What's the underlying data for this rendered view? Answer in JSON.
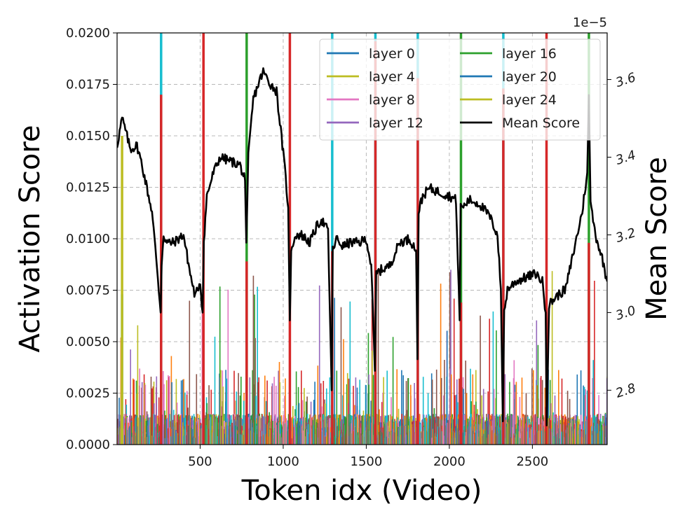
{
  "chart_data": {
    "type": "line",
    "xlabel": "Token idx (Video)",
    "ylabel_left": "Activation Score",
    "ylabel_right": "Mean Score",
    "right_axis_offset_text": "1e−5",
    "xlim": [
      0,
      2950
    ],
    "ylim_left": [
      0,
      0.02
    ],
    "ylim_right": [
      2.66,
      3.72
    ],
    "xticks": [
      500,
      1000,
      1500,
      2000,
      2500
    ],
    "xtick_labels": [
      "500",
      "1000",
      "1500",
      "2000",
      "2500"
    ],
    "yticks_left": [
      0,
      0.0025,
      0.005,
      0.0075,
      0.01,
      0.0125,
      0.015,
      0.0175,
      0.02
    ],
    "ytick_labels_left": [
      "0.0000",
      "0.0025",
      "0.0050",
      "0.0075",
      "0.0100",
      "0.0125",
      "0.0150",
      "0.0175",
      "0.0200"
    ],
    "yticks_right": [
      2.8,
      3.0,
      3.2,
      3.4,
      3.6
    ],
    "ytick_labels_right": [
      "2.8",
      "3.0",
      "3.2",
      "3.4",
      "3.6"
    ],
    "grid": true,
    "legend_position": "top-right",
    "legend": [
      {
        "name": "layer 0",
        "color": "#1f77b4"
      },
      {
        "name": "layer 4",
        "color": "#bcbd22"
      },
      {
        "name": "layer 8",
        "color": "#e377c2"
      },
      {
        "name": "layer 12",
        "color": "#9467bd"
      },
      {
        "name": "layer 16",
        "color": "#2ca02c"
      },
      {
        "name": "layer 20",
        "color": "#1f77b4"
      },
      {
        "name": "layer 24",
        "color": "#bcbd22"
      },
      {
        "name": "Mean Score",
        "color": "#000000"
      }
    ],
    "background_series_colors": [
      "#1f77b4",
      "#ff7f0e",
      "#2ca02c",
      "#d62728",
      "#9467bd",
      "#8c564b",
      "#e377c2",
      "#bcbd22",
      "#17becf"
    ],
    "frame_boundaries": [
      {
        "x": 30,
        "layers": [
          {
            "color": "#17becf",
            "value": 0.0073
          },
          {
            "color": "#bcbd22",
            "value": 0.015
          }
        ]
      },
      {
        "x": 265,
        "layers": [
          {
            "color": "#17becf",
            "value": 0.02
          },
          {
            "color": "#d62728",
            "value": 0.017
          }
        ]
      },
      {
        "x": 520,
        "layers": [
          {
            "color": "#d62728",
            "value": 0.02
          }
        ]
      },
      {
        "x": 780,
        "layers": [
          {
            "color": "#2ca02c",
            "value": 0.02
          },
          {
            "color": "#d62728",
            "value": 0.0089
          }
        ]
      },
      {
        "x": 1040,
        "layers": [
          {
            "color": "#d62728",
            "value": 0.02
          }
        ]
      },
      {
        "x": 1295,
        "layers": [
          {
            "color": "#17becf",
            "value": 0.02
          },
          {
            "color": "#d62728",
            "value": 0.0094
          }
        ]
      },
      {
        "x": 1555,
        "layers": [
          {
            "color": "#17becf",
            "value": 0.02
          },
          {
            "color": "#d62728",
            "value": 0.0196
          }
        ]
      },
      {
        "x": 1810,
        "layers": [
          {
            "color": "#17becf",
            "value": 0.02
          },
          {
            "color": "#d62728",
            "value": 0.0178
          }
        ]
      },
      {
        "x": 2070,
        "layers": [
          {
            "color": "#2ca02c",
            "value": 0.02
          },
          {
            "color": "#d62728",
            "value": 0.0069
          }
        ]
      },
      {
        "x": 2325,
        "layers": [
          {
            "color": "#17becf",
            "value": 0.02
          },
          {
            "color": "#d62728",
            "value": 0.0173
          }
        ]
      },
      {
        "x": 2585,
        "layers": [
          {
            "color": "#d62728",
            "value": 0.02
          }
        ]
      },
      {
        "x": 2840,
        "layers": [
          {
            "color": "#2ca02c",
            "value": 0.02
          },
          {
            "color": "#d62728",
            "value": 0.0098
          }
        ]
      }
    ],
    "mean_score_series": {
      "name": "Mean Score",
      "color": "#000000",
      "x": [
        0,
        30,
        50,
        80,
        120,
        150,
        180,
        210,
        240,
        262,
        268,
        280,
        300,
        340,
        400,
        440,
        470,
        500,
        515,
        522,
        540,
        580,
        620,
        680,
        740,
        770,
        778,
        790,
        820,
        860,
        880,
        920,
        960,
        1010,
        1030,
        1040,
        1048,
        1070,
        1110,
        1160,
        1200,
        1230,
        1270,
        1292,
        1298,
        1320,
        1360,
        1400,
        1460,
        1500,
        1530,
        1552,
        1560,
        1590,
        1640,
        1700,
        1760,
        1800,
        1808,
        1815,
        1840,
        1880,
        1940,
        2000,
        2040,
        2062,
        2068,
        2080,
        2120,
        2180,
        2240,
        2290,
        2310,
        2322,
        2330,
        2350,
        2400,
        2460,
        2520,
        2560,
        2580,
        2586,
        2600,
        2640,
        2700,
        2760,
        2800,
        2830,
        2840,
        2850,
        2880,
        2920,
        2950
      ],
      "y": [
        3.43,
        3.5,
        3.47,
        3.42,
        3.43,
        3.38,
        3.32,
        3.26,
        3.12,
        3.0,
        3.12,
        3.2,
        3.18,
        3.18,
        3.2,
        3.1,
        3.04,
        3.08,
        3.0,
        3.18,
        3.3,
        3.36,
        3.4,
        3.39,
        3.38,
        3.34,
        3.18,
        3.4,
        3.55,
        3.6,
        3.62,
        3.59,
        3.57,
        3.37,
        3.27,
        2.98,
        3.15,
        3.2,
        3.2,
        3.18,
        3.22,
        3.24,
        3.21,
        2.8,
        3.16,
        3.19,
        3.17,
        3.18,
        3.18,
        3.19,
        3.12,
        2.85,
        3.1,
        3.11,
        3.12,
        3.18,
        3.19,
        3.16,
        2.88,
        3.26,
        3.3,
        3.32,
        3.31,
        3.3,
        3.29,
        2.98,
        3.28,
        3.27,
        3.29,
        3.28,
        3.25,
        3.2,
        3.06,
        2.72,
        3.0,
        3.06,
        3.08,
        3.09,
        3.1,
        3.08,
        3.0,
        2.72,
        3.02,
        3.04,
        3.06,
        3.18,
        3.26,
        3.36,
        3.56,
        3.28,
        3.2,
        3.14,
        3.08
      ]
    }
  }
}
